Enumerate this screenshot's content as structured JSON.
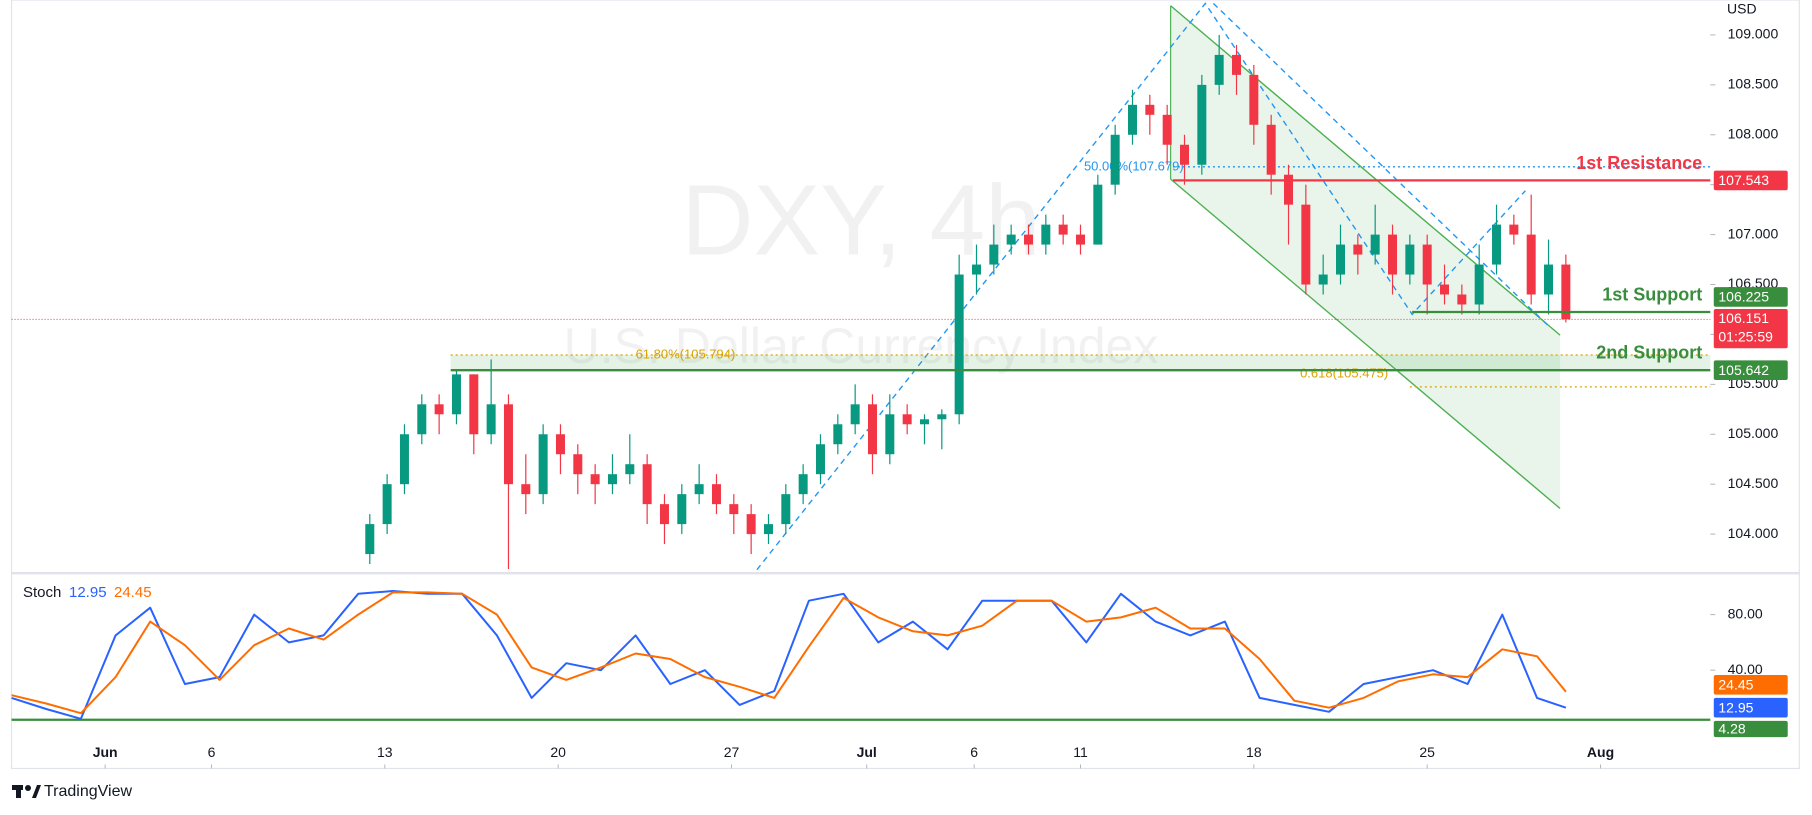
{
  "brand": "TradingView",
  "chart_data": [
    {
      "type": "candlestick",
      "watermark": "DXY, 4h",
      "subtitle": "U.S. Dollar Currency Index",
      "unit": "USD",
      "countdown": "01:25:59",
      "up_color": "#089981",
      "down_color": "#f23645",
      "xlim": [
        0,
        294
      ],
      "ylim": [
        103.62,
        109.35
      ],
      "yticks": [
        {
          "value": 104,
          "label": "104.000"
        },
        {
          "value": 104.5,
          "label": "104.500"
        },
        {
          "value": 105,
          "label": "105.000"
        },
        {
          "value": 105.5,
          "label": "105.500"
        },
        {
          "value": 106,
          "label": "106.000"
        },
        {
          "value": 106.5,
          "label": "106.500"
        },
        {
          "value": 107,
          "label": "107.000"
        },
        {
          "value": 107.5,
          "label": "107.500"
        },
        {
          "value": 108,
          "label": "108.000"
        },
        {
          "value": 108.5,
          "label": "108.500"
        },
        {
          "value": 109,
          "label": "109.000"
        }
      ],
      "x": [
        62,
        65,
        68,
        71,
        74,
        77,
        80,
        83,
        86,
        89,
        92,
        95,
        98,
        101,
        104,
        107,
        110,
        113,
        116,
        119,
        122,
        125,
        128,
        131,
        134,
        137,
        140,
        143,
        146,
        149,
        152,
        155,
        158,
        161,
        164,
        167,
        170,
        173,
        176,
        179,
        182,
        185,
        188,
        191,
        194,
        197,
        200,
        203,
        206,
        209,
        212,
        215,
        218,
        221,
        224,
        227,
        230,
        233,
        236,
        239,
        242,
        245,
        248,
        251,
        254,
        257,
        260,
        263,
        266,
        269
      ],
      "ohlc": [
        [
          103.8,
          104.2,
          103.7,
          104.1
        ],
        [
          104.1,
          104.6,
          104.0,
          104.5
        ],
        [
          104.5,
          105.1,
          104.4,
          105.0
        ],
        [
          105.0,
          105.4,
          104.9,
          105.3
        ],
        [
          105.3,
          105.4,
          105.0,
          105.2
        ],
        [
          105.2,
          105.65,
          105.1,
          105.6
        ],
        [
          105.6,
          105.6,
          104.8,
          105.0
        ],
        [
          105.0,
          105.75,
          104.9,
          105.3
        ],
        [
          105.3,
          105.4,
          103.65,
          104.5
        ],
        [
          104.5,
          104.8,
          104.2,
          104.4
        ],
        [
          104.4,
          105.1,
          104.3,
          105.0
        ],
        [
          105.0,
          105.1,
          104.6,
          104.8
        ],
        [
          104.8,
          104.9,
          104.4,
          104.6
        ],
        [
          104.6,
          104.7,
          104.3,
          104.5
        ],
        [
          104.5,
          104.8,
          104.4,
          104.6
        ],
        [
          104.6,
          105.0,
          104.5,
          104.7
        ],
        [
          104.7,
          104.8,
          104.1,
          104.3
        ],
        [
          104.3,
          104.4,
          103.9,
          104.1
        ],
        [
          104.1,
          104.5,
          104.0,
          104.4
        ],
        [
          104.4,
          104.7,
          104.3,
          104.5
        ],
        [
          104.5,
          104.6,
          104.2,
          104.3
        ],
        [
          104.3,
          104.4,
          104.0,
          104.2
        ],
        [
          104.2,
          104.3,
          103.8,
          104.0
        ],
        [
          104.0,
          104.2,
          103.9,
          104.1
        ],
        [
          104.1,
          104.5,
          104.0,
          104.4
        ],
        [
          104.4,
          104.7,
          104.3,
          104.6
        ],
        [
          104.6,
          105.0,
          104.5,
          104.9
        ],
        [
          104.9,
          105.2,
          104.8,
          105.1
        ],
        [
          105.1,
          105.5,
          105.0,
          105.3
        ],
        [
          105.3,
          105.4,
          104.6,
          104.8
        ],
        [
          104.8,
          105.4,
          104.7,
          105.2
        ],
        [
          105.2,
          105.3,
          105.0,
          105.1
        ],
        [
          105.1,
          105.2,
          104.9,
          105.15
        ],
        [
          105.15,
          105.25,
          104.85,
          105.2
        ],
        [
          105.2,
          106.8,
          105.1,
          106.6
        ],
        [
          106.6,
          106.9,
          106.4,
          106.7
        ],
        [
          106.7,
          107.1,
          106.6,
          106.9
        ],
        [
          106.9,
          107.1,
          106.8,
          107.0
        ],
        [
          107.0,
          107.1,
          106.8,
          106.9
        ],
        [
          106.9,
          107.2,
          106.8,
          107.1
        ],
        [
          107.1,
          107.2,
          106.9,
          107.0
        ],
        [
          107.0,
          107.1,
          106.8,
          106.9
        ],
        [
          106.9,
          107.6,
          106.9,
          107.5
        ],
        [
          107.5,
          108.1,
          107.4,
          108.0
        ],
        [
          108.0,
          108.45,
          107.9,
          108.3
        ],
        [
          108.3,
          108.4,
          108.0,
          108.2
        ],
        [
          108.2,
          108.3,
          107.7,
          107.9
        ],
        [
          107.9,
          108.0,
          107.5,
          107.7
        ],
        [
          107.7,
          108.6,
          107.6,
          108.5
        ],
        [
          108.5,
          109.0,
          108.4,
          108.8
        ],
        [
          108.8,
          108.9,
          108.4,
          108.6
        ],
        [
          108.6,
          108.7,
          107.9,
          108.1
        ],
        [
          108.1,
          108.2,
          107.4,
          107.6
        ],
        [
          107.6,
          107.7,
          106.9,
          107.3
        ],
        [
          107.3,
          107.5,
          106.4,
          106.5
        ],
        [
          106.5,
          106.8,
          106.4,
          106.6
        ],
        [
          106.6,
          107.1,
          106.5,
          106.9
        ],
        [
          106.9,
          107.0,
          106.6,
          106.8
        ],
        [
          106.8,
          107.3,
          106.7,
          107.0
        ],
        [
          107.0,
          107.1,
          106.4,
          106.6
        ],
        [
          106.6,
          107.0,
          106.5,
          106.9
        ],
        [
          106.9,
          107.0,
          106.2,
          106.5
        ],
        [
          106.5,
          106.7,
          106.3,
          106.4
        ],
        [
          106.4,
          106.5,
          106.2,
          106.3
        ],
        [
          106.3,
          106.9,
          106.2,
          106.7
        ],
        [
          106.7,
          107.3,
          106.6,
          107.1
        ],
        [
          107.1,
          107.2,
          106.9,
          107.0
        ],
        [
          107.0,
          107.4,
          106.3,
          106.4
        ],
        [
          106.4,
          106.95,
          106.2,
          106.7
        ],
        [
          106.7,
          106.8,
          106.12,
          106.151
        ]
      ],
      "levels": [
        {
          "name": "1st Resistance",
          "value": 107.543,
          "color": "#f23645"
        },
        {
          "name": "1st Support",
          "value": 106.225,
          "color": "#388e3c"
        },
        {
          "name": "2nd Support",
          "value": 105.642,
          "color": "#388e3c"
        }
      ],
      "fib_levels": [
        {
          "label": "50.00%(107.679)",
          "value": 107.679,
          "color": "#2196f3"
        },
        {
          "label": "61.80%(105.794)",
          "value": 105.794,
          "color": "#d8a300"
        },
        {
          "label": "0.618(105.475)",
          "value": 105.475,
          "color": "#d8a300"
        }
      ]
    },
    {
      "type": "line",
      "title": "Stoch",
      "xlim": [
        0,
        294
      ],
      "ylim": [
        -10,
        109
      ],
      "yticks": [
        {
          "value": 80,
          "label": "80.00"
        },
        {
          "value": 40,
          "label": "40.00"
        }
      ],
      "xticks": [
        {
          "value": 16.2,
          "label": "Jun"
        },
        {
          "value": 34.6,
          "label": "6"
        },
        {
          "value": 64.6,
          "label": "13"
        },
        {
          "value": 94.6,
          "label": "20"
        },
        {
          "value": 124.6,
          "label": "27"
        },
        {
          "value": 148,
          "label": "Jul"
        },
        {
          "value": 166.6,
          "label": "6"
        },
        {
          "value": 185,
          "label": "11"
        },
        {
          "value": 215,
          "label": "18"
        },
        {
          "value": 245,
          "label": "25"
        },
        {
          "value": 275,
          "label": "Aug"
        }
      ],
      "hline": {
        "value": 4.28,
        "color": "#388e3c"
      },
      "x": [
        0,
        6,
        12,
        18,
        24,
        30,
        36,
        42,
        48,
        54,
        60,
        66,
        72,
        78,
        84,
        90,
        96,
        102,
        108,
        114,
        120,
        126,
        132,
        138,
        144,
        150,
        156,
        162,
        168,
        174,
        180,
        186,
        192,
        198,
        204,
        210,
        216,
        222,
        228,
        234,
        240,
        246,
        252,
        258,
        264,
        269
      ],
      "series": [
        {
          "color": "#2962ff",
          "values": [
            20,
            12,
            5,
            65,
            85,
            30,
            35,
            80,
            60,
            65,
            95,
            97,
            95,
            95,
            65,
            20,
            45,
            40,
            65,
            30,
            40,
            15,
            25,
            90,
            95,
            60,
            75,
            55,
            90,
            90,
            90,
            60,
            95,
            75,
            65,
            75,
            20,
            15,
            10,
            30,
            35,
            40,
            30,
            80,
            20,
            12.95
          ]
        },
        {
          "color": "#ff6d00",
          "values": [
            22,
            16,
            9,
            35,
            75,
            58,
            33,
            58,
            70,
            62,
            80,
            96,
            96,
            95,
            80,
            42,
            33,
            42,
            52,
            48,
            35,
            28,
            20,
            57,
            92,
            78,
            68,
            65,
            72,
            90,
            90,
            75,
            78,
            85,
            70,
            70,
            48,
            18,
            13,
            20,
            32,
            37,
            35,
            55,
            50,
            24.45
          ]
        }
      ]
    }
  ]
}
